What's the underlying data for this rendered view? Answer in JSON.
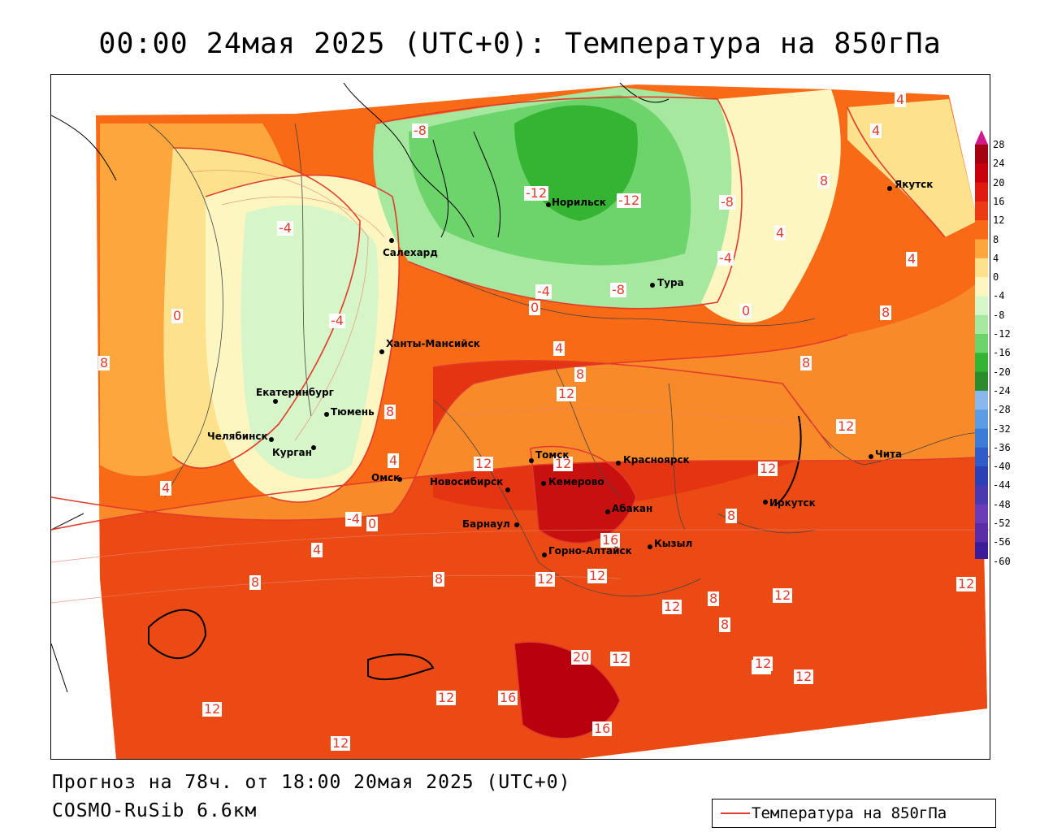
{
  "title": "00:00 24мая 2025 (UTC+0): Температура на 850гПа",
  "footer": {
    "forecast": "Прогноз на 78ч. от 18:00 20мая 2025 (UTC+0)",
    "model": "COSMO-RuSib 6.6км"
  },
  "legend": {
    "label": "Температура на 850гПа",
    "line_color": "#e23b2b"
  },
  "colorbar": {
    "levels": [
      "28",
      "24",
      "20",
      "16",
      "12",
      "8",
      "4",
      "0",
      "-4",
      "-8",
      "-12",
      "-16",
      "-20",
      "-24",
      "-28",
      "-32",
      "-36",
      "-40",
      "-44",
      "-48",
      "-52",
      "-56",
      "-60"
    ],
    "colors": [
      "#a30010",
      "#c8000e",
      "#e01a10",
      "#ec3a12",
      "#f86a16",
      "#fca63c",
      "#fde18c",
      "#fef6c0",
      "#d6f5c8",
      "#a6e8a0",
      "#6cd46a",
      "#34b432",
      "#2a8c2a",
      "#8ab8ec",
      "#5c9ce4",
      "#3a7cd8",
      "#2f5cc8",
      "#2a40b4",
      "#4a38b0",
      "#6a3cb8",
      "#5a2ca8",
      "#3a1c98",
      "#2a0c88"
    ]
  },
  "cities": [
    {
      "name": "Якутск"
    },
    {
      "name": "Норильск"
    },
    {
      "name": "Салехард"
    },
    {
      "name": "Тура"
    },
    {
      "name": "Ханты-Мансийск"
    },
    {
      "name": "Екатеринбург"
    },
    {
      "name": "Тюмень"
    },
    {
      "name": "Челябинск"
    },
    {
      "name": "Курган"
    },
    {
      "name": "Омск"
    },
    {
      "name": "Новосибирск"
    },
    {
      "name": "Томск"
    },
    {
      "name": "Красноярск"
    },
    {
      "name": "Кемерово"
    },
    {
      "name": "Абакан"
    },
    {
      "name": "Барнаул"
    },
    {
      "name": "Горно-Алтайск"
    },
    {
      "name": "Кызыл"
    },
    {
      "name": "Иркутск"
    },
    {
      "name": "Чита"
    }
  ],
  "contour_labels": [
    "-8",
    "-12",
    "-12",
    "-8",
    "-4",
    "-4",
    "-4",
    "-4",
    "-8",
    "0",
    "0",
    "0",
    "4",
    "4",
    "4",
    "4",
    "8",
    "8",
    "12",
    "8",
    "12",
    "12",
    "12",
    "4",
    "8",
    "12",
    "16",
    "8",
    "-4",
    "0",
    "4",
    "8",
    "12",
    "12",
    "12",
    "8",
    "12",
    "12",
    "8",
    "12",
    "20",
    "12",
    "12",
    "16",
    "12",
    "12",
    "16",
    "12",
    "12",
    "4",
    "4",
    "8",
    "8",
    "8"
  ]
}
